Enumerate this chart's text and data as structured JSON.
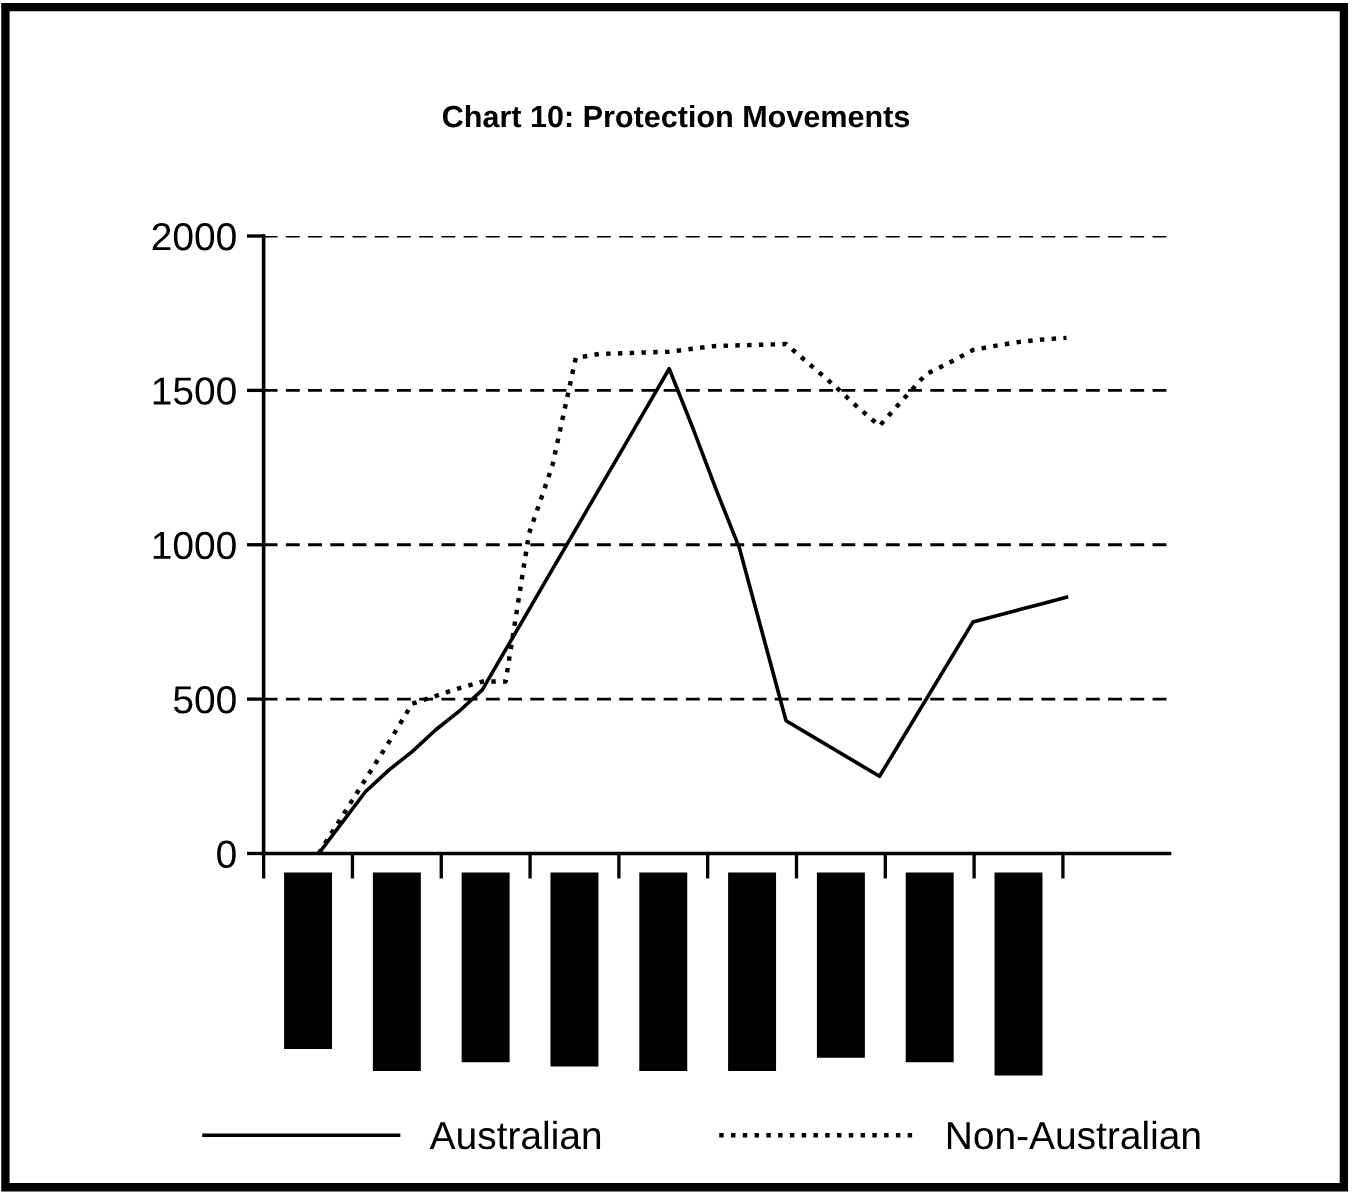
{
  "chart_data": {
    "type": "line",
    "title": "Chart 10: Protection Movements",
    "categories": [
      null,
      null,
      null,
      null,
      null,
      null,
      null,
      null,
      null,
      null,
      null,
      null,
      null,
      null,
      null,
      null,
      null,
      null,
      null,
      null,
      null,
      null,
      null,
      null,
      null,
      null,
      null,
      null,
      null,
      null,
      null,
      null,
      null
    ],
    "ylim": [
      0,
      2000
    ],
    "yticks": [
      0,
      500,
      1000,
      1500,
      2000
    ],
    "grid": "y",
    "legend": "bottom",
    "marker": "none",
    "series": [
      {
        "name": "Australian",
        "color": "#000000",
        "line_style": "solid",
        "values": [
          0,
          100,
          200,
          270,
          330,
          400,
          460,
          530,
          660,
          790,
          920,
          1050,
          1180,
          1310,
          1440,
          1570,
          1380,
          1180,
          990,
          710,
          430,
          385,
          340,
          295,
          250,
          375,
          500,
          625,
          750,
          770,
          790,
          810,
          830
        ]
      },
      {
        "name": "Non-Australian",
        "color": "#000000",
        "line_style": "dotted",
        "values": [
          0,
          120,
          240,
          360,
          485,
          510,
          535,
          557,
          557,
          1036,
          1256,
          1605,
          1618,
          1620,
          1623,
          1625,
          1635,
          1644,
          1646,
          1648,
          1650,
          1585,
          1520,
          1450,
          1385,
          1470,
          1553,
          1590,
          1631,
          1645,
          1657,
          1665,
          1670
        ]
      }
    ]
  }
}
